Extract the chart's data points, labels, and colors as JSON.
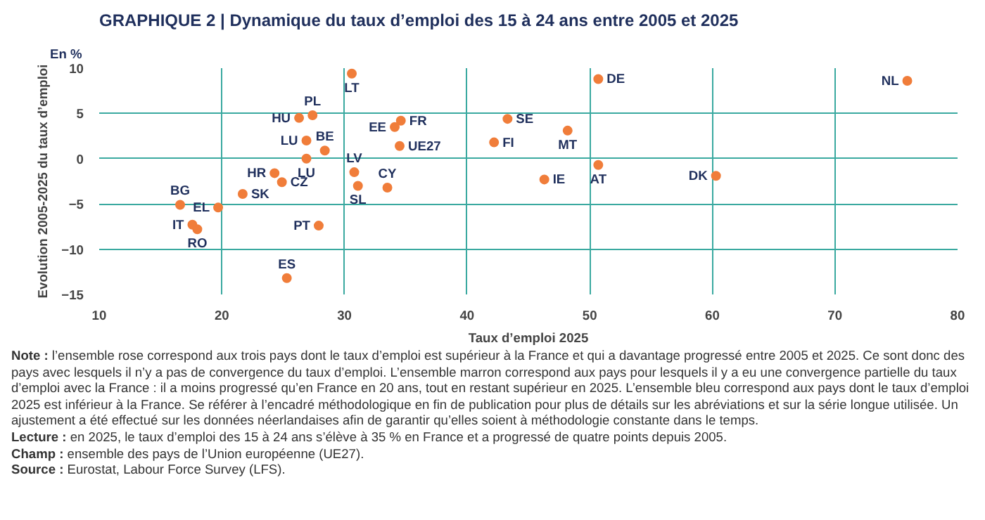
{
  "chart_data": {
    "type": "scatter",
    "title": "GRAPHIQUE 2 | Dynamique du taux d’emploi des 15 à 24 ans entre 2005 et 2025",
    "xlabel": "Taux d’emploi 2025",
    "ylabel": "Evolution 2005-2025 du taux d’emploi",
    "marker": "circle",
    "grid": true,
    "xlim": [
      10,
      80
    ],
    "xticks": [
      10,
      20,
      30,
      40,
      50,
      60,
      70,
      80
    ],
    "ylim": [
      -15,
      10
    ],
    "yticks": [
      -15,
      -10,
      -5,
      0,
      5,
      10
    ],
    "series": [
      {
        "color": "#f07d3a",
        "x": [
          30.6,
          27.4,
          26.3,
          34.6,
          34.1,
          34.5,
          26.9,
          28.4,
          26.9,
          30.8,
          24.3,
          24.9,
          31.1,
          33.5,
          21.7,
          16.6,
          19.7,
          17.6,
          18.0,
          27.9,
          25.3,
          50.7,
          75.9,
          43.3,
          48.2,
          42.2,
          50.7,
          46.3,
          60.3
        ],
        "values": [
          9.4,
          4.8,
          4.5,
          4.2,
          3.5,
          1.4,
          2.0,
          0.9,
          0.0,
          -1.5,
          -1.6,
          -2.6,
          -3.0,
          -3.2,
          -3.9,
          -5.1,
          -5.4,
          -7.3,
          -7.8,
          -7.4,
          -13.2,
          8.8,
          8.6,
          4.4,
          3.1,
          1.8,
          -0.7,
          -2.3,
          -1.9
        ]
      }
    ],
    "annotations": [
      "En %",
      {
        "text": "LT",
        "x": 30.6,
        "y": 9.4
      },
      {
        "text": "PL",
        "x": 27.4,
        "y": 4.8
      },
      {
        "text": "HU",
        "x": 26.3,
        "y": 4.5
      },
      {
        "text": "FR",
        "x": 34.6,
        "y": 4.2
      },
      {
        "text": "EE",
        "x": 34.1,
        "y": 3.5
      },
      {
        "text": "UE27",
        "x": 34.5,
        "y": 1.4
      },
      {
        "text": "LU",
        "x": 26.9,
        "y": 2.0
      },
      {
        "text": "BE",
        "x": 28.4,
        "y": 0.9
      },
      {
        "text": "LU",
        "x": 26.9,
        "y": 0.0
      },
      {
        "text": "LV",
        "x": 30.8,
        "y": -1.5
      },
      {
        "text": "HR",
        "x": 24.3,
        "y": -1.6
      },
      {
        "text": "CZ",
        "x": 24.9,
        "y": -2.6
      },
      {
        "text": "SL",
        "x": 31.1,
        "y": -3.0
      },
      {
        "text": "CY",
        "x": 33.5,
        "y": -3.2
      },
      {
        "text": "SK",
        "x": 21.7,
        "y": -3.9
      },
      {
        "text": "BG",
        "x": 16.6,
        "y": -5.1
      },
      {
        "text": "EL",
        "x": 19.7,
        "y": -5.4
      },
      {
        "text": "IT",
        "x": 17.6,
        "y": -7.3
      },
      {
        "text": "RO",
        "x": 18.0,
        "y": -7.8
      },
      {
        "text": "PT",
        "x": 27.9,
        "y": -7.4
      },
      {
        "text": "ES",
        "x": 25.3,
        "y": -13.2
      },
      {
        "text": "DE",
        "x": 50.7,
        "y": 8.8
      },
      {
        "text": "NL",
        "x": 75.9,
        "y": 8.6
      },
      {
        "text": "SE",
        "x": 43.3,
        "y": 4.4
      },
      {
        "text": "MT",
        "x": 48.2,
        "y": 3.1
      },
      {
        "text": "FI",
        "x": 42.2,
        "y": 1.8
      },
      {
        "text": "AT",
        "x": 50.7,
        "y": -0.7
      },
      {
        "text": "IE",
        "x": 46.3,
        "y": -2.3
      },
      {
        "text": "DK",
        "x": 60.3,
        "y": -1.9
      },
      "Note : l’ensemble rose correspond aux trois pays dont le taux d’emploi est supérieur à la France et qui a davantage progressé entre 2005 et 2025. Ce sont donc des pays avec lesquels il n’y a pas de convergence du taux d’emploi. L’ensemble marron correspond aux pays pour lesquels il y a eu une convergence partielle du taux d’emploi avec la France : il a moins progressé qu’en France en 20 ans, tout en restant supérieur en 2025. L’ensemble bleu correspond aux pays dont le taux d’emploi 2025 est inférieur à la France. Se référer à l’encadré méthodologique en fin de publication pour plus de détails sur les abréviations et sur la série longue utilisée. Un ajustement a été effectué sur les données néerlandaises afin de garantir qu’elles soient à méthodologie constante dans le temps.",
      "Lecture : en 2025, le taux d’emploi des 15 à 24 ans s’élève à 35 % en France et a progressé de quatre points depuis 2005.",
      "Champ : ensemble des pays de l’Union européenne (UE27).",
      "Source : Eurostat, Labour Force Survey (LFS)."
    ]
  }
}
